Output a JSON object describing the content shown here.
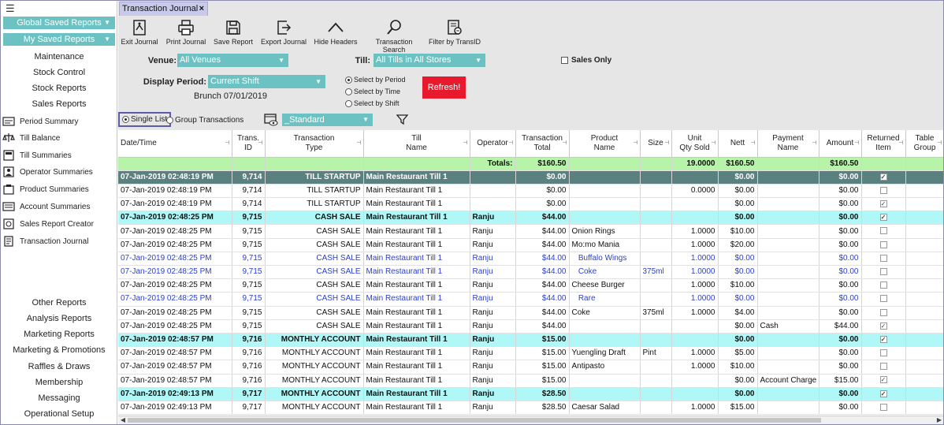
{
  "sidebar": {
    "menu_icon": "hamburger-icon",
    "global_saved_reports": "Global Saved Reports",
    "my_saved_reports": "My Saved Reports",
    "top_links": [
      "Maintenance",
      "Stock Control",
      "Stock Reports",
      "Sales Reports"
    ],
    "summaries": [
      {
        "label": "Period Summary",
        "icon": "period-summary-icon"
      },
      {
        "label": "Till Balance",
        "icon": "till-balance-icon"
      },
      {
        "label": "Till Summaries",
        "icon": "till-summaries-icon"
      },
      {
        "label": "Operator Summaries",
        "icon": "operator-summaries-icon"
      },
      {
        "label": "Product Summaries",
        "icon": "product-summaries-icon"
      },
      {
        "label": "Account Summaries",
        "icon": "account-summaries-icon"
      },
      {
        "label": "Sales Report Creator",
        "icon": "sales-report-creator-icon"
      },
      {
        "label": "Transaction Journal",
        "icon": "transaction-journal-icon"
      }
    ],
    "bottom_links": [
      "Other Reports",
      "Analysis Reports",
      "Marketing Reports",
      "Marketing & Promotions",
      "Raffles & Draws",
      "Membership",
      "Messaging",
      "Operational Setup"
    ]
  },
  "tab": {
    "label": "Transaction Journal",
    "close": "×"
  },
  "toolbar": [
    {
      "label": "Exit Journal",
      "icon": "exit-journal-icon"
    },
    {
      "label": "Print Journal",
      "icon": "print-icon"
    },
    {
      "label": "Save Report",
      "icon": "save-icon"
    },
    {
      "label": "Export Journal",
      "icon": "export-icon"
    },
    {
      "label": "Hide Headers",
      "icon": "chevron-up-icon"
    },
    {
      "label": "Transaction Search",
      "icon": "search-icon"
    },
    {
      "label": "Filter by TransID",
      "icon": "filter-transid-icon"
    }
  ],
  "filters": {
    "venue_label": "Venue:",
    "venue_value": "All Venues",
    "till_label": "Till:",
    "till_value": "All Tills in All Stores",
    "sales_only": "Sales Only",
    "display_period_label": "Display Period:",
    "display_period_value": "Current Shift",
    "period_caption": "Brunch 07/01/2019",
    "select_by_period": "Select by Period",
    "select_by_time": "Select  by Time",
    "select_by_shift": "Select by Shift",
    "refresh": "Refresh!",
    "single_list": "Single List",
    "group_transactions": "Group Transactions",
    "layout_value": "_Standard"
  },
  "colors": {
    "accent": "#6cc2c2",
    "refresh": "#e8192c",
    "totals_row": "#b7f3a8",
    "header_row": "#5b8080",
    "cash_sale_row": "#b0f7f7",
    "blue_text": "#2a3fd1",
    "tab": "#c9c9ea"
  },
  "grid": {
    "columns": [
      [
        "Date/Time"
      ],
      [
        "Trans.",
        "ID"
      ],
      [
        "Transaction",
        "Type"
      ],
      [
        "Till",
        "Name"
      ],
      [
        "Operator"
      ],
      [
        "Transaction",
        "Total"
      ],
      [
        "Product",
        "Name"
      ],
      [
        "Size"
      ],
      [
        "Unit",
        "Qty Sold"
      ],
      [
        "Nett"
      ],
      [
        "Payment",
        "Name"
      ],
      [
        "Amount"
      ],
      [
        "Returned",
        "Item"
      ],
      [
        "Table",
        "Group"
      ]
    ],
    "totals": {
      "label": "Totals:",
      "transaction_total": "$160.50",
      "qty": "19.0000",
      "nett": "$160.50",
      "amount": "$160.50"
    },
    "rows": [
      {
        "style": "dark",
        "cells": [
          "07-Jan-2019 02:48:19 PM",
          "9,714",
          "TILL STARTUP",
          "Main Restaurant Till 1",
          "",
          "$0.00",
          "",
          "",
          "",
          "$0.00",
          "",
          "$0.00"
        ],
        "returned": true
      },
      {
        "style": "",
        "cells": [
          "07-Jan-2019 02:48:19 PM",
          "9,714",
          "TILL STARTUP",
          "Main Restaurant Till 1",
          "",
          "$0.00",
          "",
          "",
          "0.0000",
          "$0.00",
          "",
          "$0.00"
        ],
        "returned": false
      },
      {
        "style": "",
        "cells": [
          "07-Jan-2019 02:48:19 PM",
          "9,714",
          "TILL STARTUP",
          "Main Restaurant Till 1",
          "",
          "$0.00",
          "",
          "",
          "",
          "$0.00",
          "",
          "$0.00"
        ],
        "returned": true
      },
      {
        "style": "cyan",
        "cells": [
          "07-Jan-2019 02:48:25 PM",
          "9,715",
          "CASH SALE",
          "Main Restaurant Till 1",
          "Ranju",
          "$44.00",
          "",
          "",
          "",
          "$0.00",
          "",
          "$0.00"
        ],
        "returned": true
      },
      {
        "style": "",
        "cells": [
          "07-Jan-2019 02:48:25 PM",
          "9,715",
          "CASH SALE",
          "Main Restaurant Till 1",
          "Ranju",
          "$44.00",
          "Onion Rings",
          "",
          "1.0000",
          "$10.00",
          "",
          "$0.00"
        ],
        "returned": false
      },
      {
        "style": "",
        "cells": [
          "07-Jan-2019 02:48:25 PM",
          "9,715",
          "CASH SALE",
          "Main Restaurant Till 1",
          "Ranju",
          "$44.00",
          "Mo:mo Mania",
          "",
          "1.0000",
          "$20.00",
          "",
          "$0.00"
        ],
        "returned": false
      },
      {
        "style": "blue",
        "cells": [
          "07-Jan-2019 02:48:25 PM",
          "9,715",
          "CASH SALE",
          "Main Restaurant Till 1",
          "Ranju",
          "$44.00",
          "   Buffalo Wings",
          "",
          "1.0000",
          "$0.00",
          "",
          "$0.00"
        ],
        "returned": false
      },
      {
        "style": "blue",
        "cells": [
          "07-Jan-2019 02:48:25 PM",
          "9,715",
          "CASH SALE",
          "Main Restaurant Till 1",
          "Ranju",
          "$44.00",
          "   Coke",
          "375ml",
          "1.0000",
          "$0.00",
          "",
          "$0.00"
        ],
        "returned": false
      },
      {
        "style": "",
        "cells": [
          "07-Jan-2019 02:48:25 PM",
          "9,715",
          "CASH SALE",
          "Main Restaurant Till 1",
          "Ranju",
          "$44.00",
          "Cheese Burger",
          "",
          "1.0000",
          "$10.00",
          "",
          "$0.00"
        ],
        "returned": false
      },
      {
        "style": "blue",
        "cells": [
          "07-Jan-2019 02:48:25 PM",
          "9,715",
          "CASH SALE",
          "Main Restaurant Till 1",
          "Ranju",
          "$44.00",
          "   Rare",
          "",
          "1.0000",
          "$0.00",
          "",
          "$0.00"
        ],
        "returned": false
      },
      {
        "style": "",
        "cells": [
          "07-Jan-2019 02:48:25 PM",
          "9,715",
          "CASH SALE",
          "Main Restaurant Till 1",
          "Ranju",
          "$44.00",
          "Coke",
          "375ml",
          "1.0000",
          "$4.00",
          "",
          "$0.00"
        ],
        "returned": false
      },
      {
        "style": "",
        "cells": [
          "07-Jan-2019 02:48:25 PM",
          "9,715",
          "CASH SALE",
          "Main Restaurant Till 1",
          "Ranju",
          "$44.00",
          "",
          "",
          "",
          "$0.00",
          "Cash",
          "$44.00"
        ],
        "returned": true
      },
      {
        "style": "cyan",
        "cells": [
          "07-Jan-2019 02:48:57 PM",
          "9,716",
          "MONTHLY ACCOUNT",
          "Main Restaurant Till 1",
          "Ranju",
          "$15.00",
          "",
          "",
          "",
          "$0.00",
          "",
          "$0.00"
        ],
        "returned": true
      },
      {
        "style": "",
        "cells": [
          "07-Jan-2019 02:48:57 PM",
          "9,716",
          "MONTHLY ACCOUNT",
          "Main Restaurant Till 1",
          "Ranju",
          "$15.00",
          "Yuengling Draft",
          "Pint",
          "1.0000",
          "$5.00",
          "",
          "$0.00"
        ],
        "returned": false
      },
      {
        "style": "",
        "cells": [
          "07-Jan-2019 02:48:57 PM",
          "9,716",
          "MONTHLY ACCOUNT",
          "Main Restaurant Till 1",
          "Ranju",
          "$15.00",
          "Antipasto",
          "",
          "1.0000",
          "$10.00",
          "",
          "$0.00"
        ],
        "returned": false
      },
      {
        "style": "",
        "cells": [
          "07-Jan-2019 02:48:57 PM",
          "9,716",
          "MONTHLY ACCOUNT",
          "Main Restaurant Till 1",
          "Ranju",
          "$15.00",
          "",
          "",
          "",
          "$0.00",
          "Account Charge",
          "$15.00"
        ],
        "returned": true
      },
      {
        "style": "cyan",
        "cells": [
          "07-Jan-2019 02:49:13 PM",
          "9,717",
          "MONTHLY ACCOUNT",
          "Main Restaurant Till 1",
          "Ranju",
          "$28.50",
          "",
          "",
          "",
          "$0.00",
          "",
          "$0.00"
        ],
        "returned": true
      },
      {
        "style": "",
        "cells": [
          "07-Jan-2019 02:49:13 PM",
          "9,717",
          "MONTHLY ACCOUNT",
          "Main Restaurant Till 1",
          "Ranju",
          "$28.50",
          "Caesar Salad",
          "",
          "1.0000",
          "$15.00",
          "",
          "$0.00"
        ],
        "returned": false
      }
    ]
  }
}
